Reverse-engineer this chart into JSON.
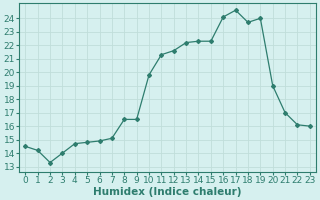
{
  "x": [
    0,
    1,
    2,
    3,
    4,
    5,
    6,
    7,
    8,
    9,
    10,
    11,
    12,
    13,
    14,
    15,
    16,
    17,
    18,
    19,
    20,
    21,
    22,
    23
  ],
  "y": [
    14.5,
    14.2,
    13.3,
    14.0,
    14.7,
    14.8,
    14.9,
    15.1,
    16.5,
    16.5,
    19.8,
    21.3,
    21.6,
    22.2,
    22.3,
    22.3,
    24.1,
    24.6,
    23.7,
    24.0,
    19.0,
    17.0,
    16.1,
    16.0
  ],
  "line_color": "#2e7d6e",
  "marker": "D",
  "marker_size": 2.0,
  "bg_color": "#d6f0ef",
  "grid_color": "#c0deda",
  "grid_color_minor": "#e0f4f2",
  "tick_color": "#2e7d6e",
  "xlabel": "Humidex (Indice chaleur)",
  "ylabel_ticks": [
    13,
    14,
    15,
    16,
    17,
    18,
    19,
    20,
    21,
    22,
    23,
    24
  ],
  "ylim": [
    12.6,
    25.1
  ],
  "xlim": [
    -0.5,
    23.5
  ],
  "xticks": [
    0,
    1,
    2,
    3,
    4,
    5,
    6,
    7,
    8,
    9,
    10,
    11,
    12,
    13,
    14,
    15,
    16,
    17,
    18,
    19,
    20,
    21,
    22,
    23
  ],
  "tick_fontsize": 6.5,
  "xlabel_fontsize": 7.5
}
